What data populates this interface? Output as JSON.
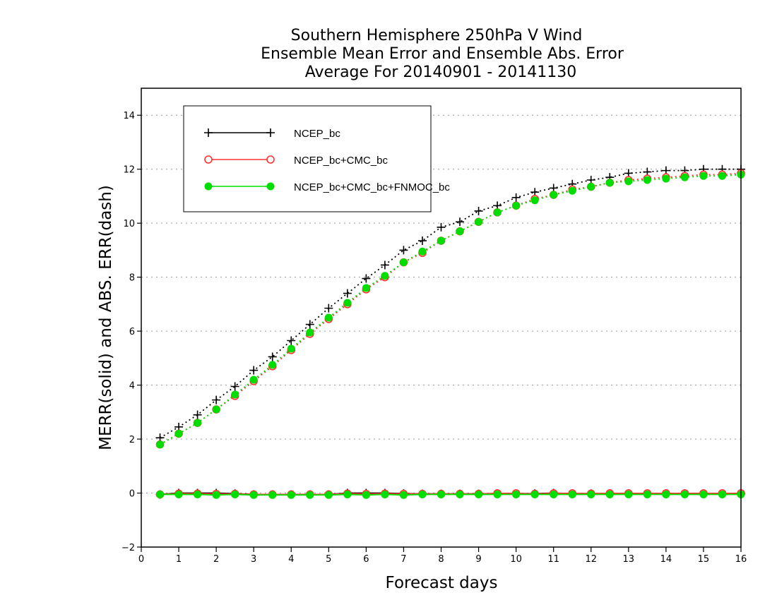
{
  "chart_data": {
    "type": "line",
    "title_lines": [
      "Southern Hemisphere 250hPa V Wind",
      "Ensemble Mean Error and Ensemble Abs. Error",
      "Average For 20140901 - 20141130"
    ],
    "xlabel": "Forecast days",
    "ylabel": "MERR(solid) and ABS. ERR(dash)",
    "xlim": [
      0,
      16
    ],
    "ylim": [
      -2,
      15
    ],
    "xticks": [
      0,
      1,
      2,
      3,
      4,
      5,
      6,
      7,
      8,
      9,
      10,
      11,
      12,
      13,
      14,
      15,
      16
    ],
    "yticks": [
      -2,
      0,
      2,
      4,
      6,
      8,
      10,
      12,
      14
    ],
    "grid": "horizontal dotted",
    "legend_position": "top-left",
    "x": [
      0.5,
      1,
      1.5,
      2,
      2.5,
      3,
      3.5,
      4,
      4.5,
      5,
      5.5,
      6,
      6.5,
      7,
      7.5,
      8,
      8.5,
      9,
      9.5,
      10,
      10.5,
      11,
      11.5,
      12,
      12.5,
      13,
      13.5,
      14,
      14.5,
      15,
      15.5,
      16
    ],
    "series": [
      {
        "name": "NCEP_bc",
        "color": "#000000",
        "marker": "plus",
        "abs_err": [
          2.05,
          2.45,
          2.9,
          3.45,
          3.95,
          4.55,
          5.05,
          5.65,
          6.25,
          6.85,
          7.4,
          7.95,
          8.45,
          9.0,
          9.35,
          9.85,
          10.05,
          10.45,
          10.65,
          10.95,
          11.15,
          11.3,
          11.45,
          11.6,
          11.7,
          11.85,
          11.9,
          11.95,
          11.95,
          12.0,
          12.0,
          12.0
        ],
        "mean_err": [
          -0.05,
          0.0,
          0.0,
          0.0,
          -0.02,
          -0.05,
          -0.05,
          -0.05,
          -0.05,
          -0.05,
          0.0,
          0.0,
          0.0,
          -0.02,
          -0.03,
          -0.03,
          -0.03,
          -0.03,
          -0.02,
          -0.02,
          -0.02,
          0.0,
          -0.02,
          -0.02,
          -0.02,
          -0.02,
          -0.02,
          -0.02,
          -0.02,
          -0.02,
          -0.02,
          -0.02
        ]
      },
      {
        "name": "NCEP_bc+CMC_bc",
        "color": "#ff3030",
        "marker": "open-circle",
        "abs_err": [
          1.8,
          2.2,
          2.6,
          3.1,
          3.6,
          4.15,
          4.7,
          5.3,
          5.9,
          6.45,
          7.0,
          7.55,
          8.0,
          8.55,
          8.9,
          9.35,
          9.7,
          10.05,
          10.4,
          10.65,
          10.9,
          11.05,
          11.25,
          11.35,
          11.5,
          11.6,
          11.65,
          11.7,
          11.75,
          11.8,
          11.8,
          11.85
        ],
        "mean_err": [
          -0.05,
          -0.02,
          -0.02,
          -0.03,
          -0.03,
          -0.05,
          -0.05,
          -0.05,
          -0.05,
          -0.05,
          -0.02,
          -0.03,
          -0.02,
          -0.03,
          -0.03,
          -0.03,
          -0.03,
          -0.03,
          -0.01,
          -0.01,
          -0.03,
          -0.01,
          -0.01,
          -0.02,
          -0.01,
          -0.01,
          -0.01,
          -0.01,
          -0.01,
          -0.01,
          -0.01,
          -0.01
        ]
      },
      {
        "name": "NCEP_bc+CMC_bc+FNMOC_bc",
        "color": "#00dd00",
        "marker": "filled-circle",
        "abs_err": [
          1.8,
          2.2,
          2.6,
          3.1,
          3.65,
          4.2,
          4.75,
          5.35,
          5.95,
          6.5,
          7.05,
          7.6,
          8.05,
          8.55,
          8.95,
          9.35,
          9.7,
          10.05,
          10.4,
          10.65,
          10.85,
          11.05,
          11.2,
          11.35,
          11.5,
          11.55,
          11.6,
          11.65,
          11.7,
          11.75,
          11.75,
          11.8
        ],
        "mean_err": [
          -0.05,
          -0.05,
          -0.05,
          -0.07,
          -0.05,
          -0.07,
          -0.07,
          -0.07,
          -0.07,
          -0.07,
          -0.05,
          -0.07,
          -0.05,
          -0.07,
          -0.05,
          -0.05,
          -0.05,
          -0.05,
          -0.05,
          -0.05,
          -0.05,
          -0.05,
          -0.05,
          -0.05,
          -0.05,
          -0.05,
          -0.05,
          -0.05,
          -0.05,
          -0.05,
          -0.05,
          -0.05
        ]
      }
    ]
  }
}
